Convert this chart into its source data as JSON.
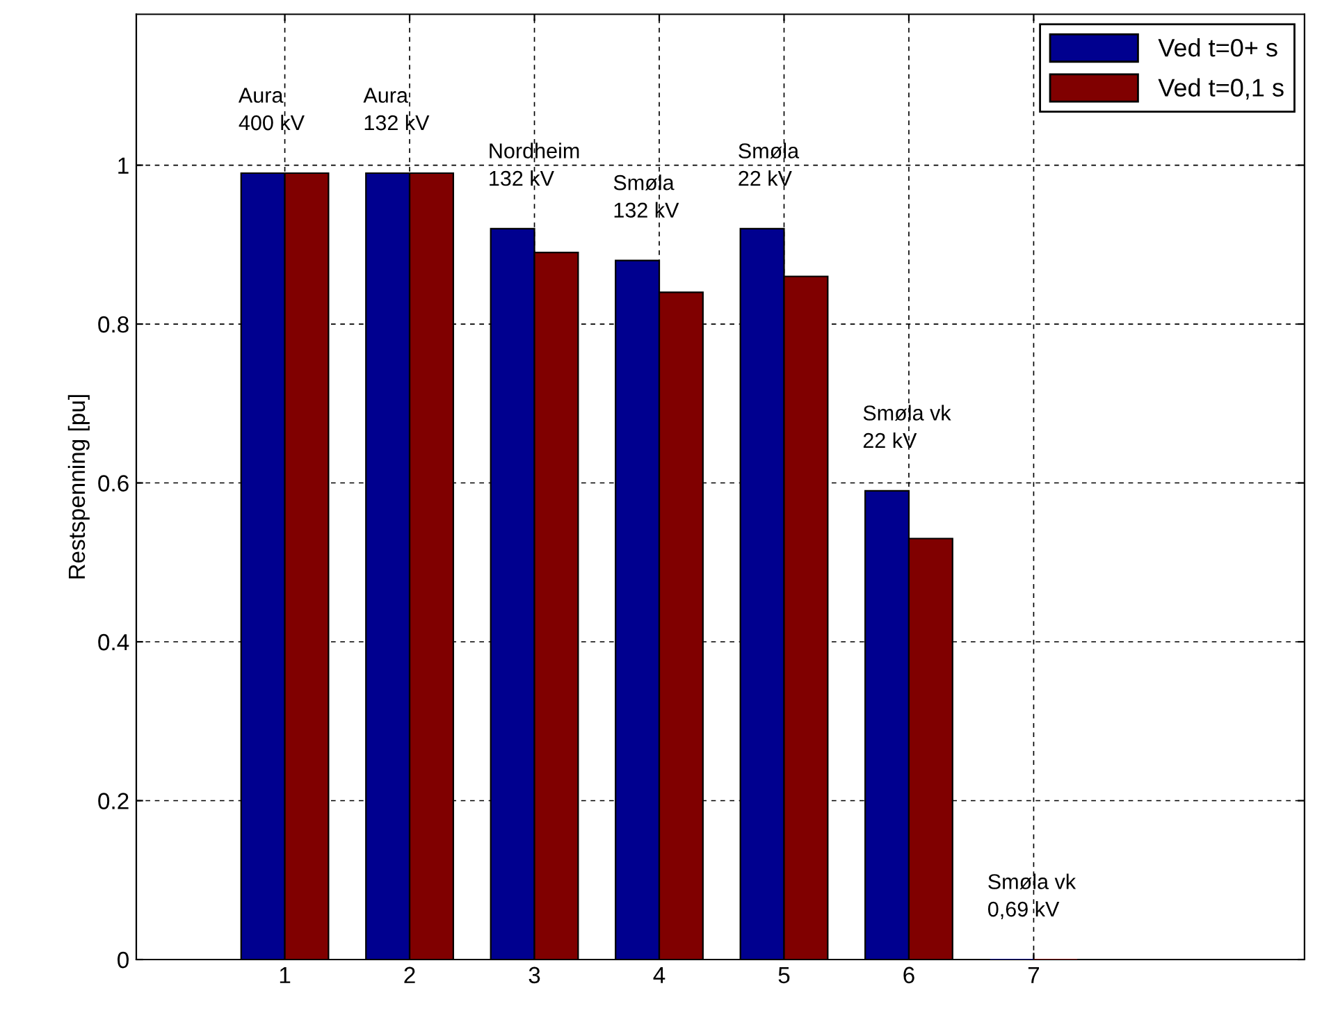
{
  "chart_data": {
    "type": "bar",
    "ylabel": "Restspenning [pu]",
    "x": [
      1,
      2,
      3,
      4,
      5,
      6,
      7
    ],
    "series": [
      {
        "name": "Ved t=0+ s",
        "color": "#00008f",
        "values": [
          0.99,
          0.99,
          0.92,
          0.88,
          0.92,
          0.59,
          0
        ]
      },
      {
        "name": "Ved t=0,1 s",
        "color": "#800000",
        "values": [
          0.99,
          0.99,
          0.89,
          0.84,
          0.86,
          0.53,
          0
        ]
      }
    ],
    "xlim": [
      -0.19,
      9.17
    ],
    "xticks": [
      1,
      2,
      3,
      4,
      5,
      6,
      7
    ],
    "ylim": [
      0,
      1.19
    ],
    "yticks": [
      0,
      0.2,
      0.4,
      0.6,
      0.8,
      1
    ],
    "grid": true,
    "legend": "top right",
    "annotations": [
      {
        "text": "Aura\n400 kV",
        "x": 1,
        "y": 0.99
      },
      {
        "text": "Aura\n132 kV",
        "x": 2,
        "y": 0.99
      },
      {
        "text": "Nordheim\n132 kV",
        "x": 3,
        "y": 0.92
      },
      {
        "text": "Smøla\n132 kV",
        "x": 4,
        "y": 0.88
      },
      {
        "text": "Smøla\n22 kV",
        "x": 5,
        "y": 0.92
      },
      {
        "text": "Smøla vk\n22 kV",
        "x": 6,
        "y": 0.59
      },
      {
        "text": "Smøla vk\n0,69 kV",
        "x": 7,
        "y": 0
      }
    ]
  }
}
